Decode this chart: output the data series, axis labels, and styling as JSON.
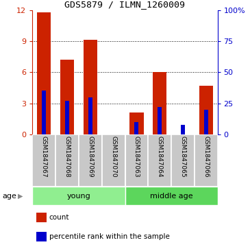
{
  "title": "GDS5879 / ILMN_1260009",
  "samples": [
    "GSM1847067",
    "GSM1847068",
    "GSM1847069",
    "GSM1847070",
    "GSM1847063",
    "GSM1847064",
    "GSM1847065",
    "GSM1847066"
  ],
  "counts": [
    11.8,
    7.2,
    9.1,
    0.0,
    2.1,
    6.0,
    0.0,
    4.7
  ],
  "percentiles": [
    35,
    27,
    30,
    0,
    10,
    22,
    8,
    20
  ],
  "groups": [
    {
      "label": "young",
      "start": 0,
      "end": 4,
      "color": "#90EE90"
    },
    {
      "label": "middle age",
      "start": 4,
      "end": 8,
      "color": "#5CD65C"
    }
  ],
  "group_divider": 4,
  "ylim_left": [
    0,
    12
  ],
  "ylim_right": [
    0,
    100
  ],
  "yticks_left": [
    0,
    3,
    6,
    9,
    12
  ],
  "yticks_right": [
    0,
    25,
    50,
    75,
    100
  ],
  "bar_color_red": "#CC2200",
  "bar_color_blue": "#0000CC",
  "bar_width": 0.6,
  "blue_bar_width": 0.18,
  "age_label": "age",
  "legend_count": "count",
  "legend_percentile": "percentile rank within the sample",
  "grid_color": "black",
  "tick_label_color_left": "#CC2200",
  "tick_label_color_right": "#0000CC",
  "bg_color": "#C8C8C8",
  "bg_color_light": "#CCCCCC"
}
